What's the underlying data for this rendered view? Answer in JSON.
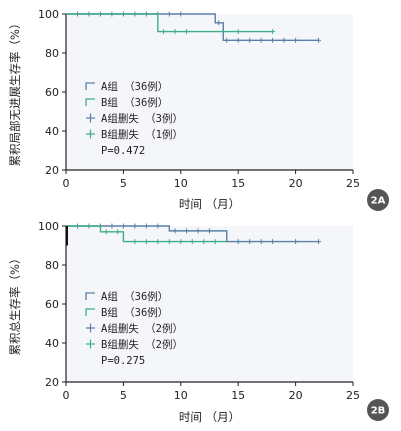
{
  "colors": {
    "groupA": "#5b7fa8",
    "groupB": "#3fae84",
    "plotBg": "#f4f6f9",
    "axis": "#222222",
    "badge": "#555555"
  },
  "chart_data": [
    {
      "id": "2A",
      "type": "line",
      "badge": "2A",
      "ylabel": "累积局部无进展生存率（%）",
      "xlabel": "时间 （月）",
      "xlim": [
        0,
        25
      ],
      "ylim": [
        20,
        100
      ],
      "xticks": [
        "0",
        "5",
        "10",
        "15",
        "20",
        "25"
      ],
      "yticks": [
        "20",
        "40",
        "60",
        "80",
        "100"
      ],
      "legend": [
        {
          "label": "A组 （36例）",
          "marker": "step",
          "series": "A"
        },
        {
          "label": "B组 （36例）",
          "marker": "step",
          "series": "B"
        },
        {
          "label": "A组删失 （3例）",
          "marker": "plus",
          "series": "A"
        },
        {
          "label": "B组删失 （1例）",
          "marker": "plus",
          "series": "B"
        }
      ],
      "pvalue": "P=0.472",
      "series": [
        {
          "name": "A组",
          "key": "A",
          "steps": [
            [
              0,
              100
            ],
            [
              13,
              100
            ],
            [
              13,
              95.5
            ],
            [
              13.7,
              95.5
            ],
            [
              13.7,
              86.5
            ],
            [
              22,
              86.5
            ]
          ],
          "censors": [
            [
              1,
              100
            ],
            [
              2,
              100
            ],
            [
              3,
              100
            ],
            [
              4,
              100
            ],
            [
              5,
              100
            ],
            [
              6,
              100
            ],
            [
              7,
              100
            ],
            [
              8,
              100
            ],
            [
              9,
              100
            ],
            [
              10,
              100
            ],
            [
              13.3,
              95.5
            ],
            [
              14,
              86.5
            ],
            [
              15,
              86.5
            ],
            [
              16,
              86.5
            ],
            [
              17,
              86.5
            ],
            [
              18,
              86.5
            ],
            [
              19,
              86.5
            ],
            [
              20,
              86.5
            ],
            [
              22,
              86.5
            ]
          ]
        },
        {
          "name": "B组",
          "key": "B",
          "steps": [
            [
              0,
              100
            ],
            [
              8,
              100
            ],
            [
              8,
              91
            ],
            [
              18,
              91
            ]
          ],
          "censors": [
            [
              8.5,
              91
            ],
            [
              9.5,
              91
            ],
            [
              10.5,
              91
            ],
            [
              15,
              91
            ],
            [
              18,
              91
            ]
          ]
        }
      ]
    },
    {
      "id": "2B",
      "type": "line",
      "badge": "2B",
      "ylabel": "累积总生存率（%）",
      "xlabel": "时间 （月）",
      "xlim": [
        0,
        25
      ],
      "ylim": [
        20,
        100
      ],
      "xticks": [
        "0",
        "5",
        "10",
        "15",
        "20",
        "25"
      ],
      "yticks": [
        "20",
        "40",
        "60",
        "80",
        "100"
      ],
      "legend": [
        {
          "label": "A组 （36例）",
          "marker": "step",
          "series": "A"
        },
        {
          "label": "B组 （36例）",
          "marker": "step",
          "series": "B"
        },
        {
          "label": "A组删失 （2例）",
          "marker": "plus",
          "series": "A"
        },
        {
          "label": "B组删失 （2例）",
          "marker": "plus",
          "series": "B"
        }
      ],
      "pvalue": "P=0.275",
      "series": [
        {
          "name": "A组",
          "key": "A",
          "steps": [
            [
              0,
              100
            ],
            [
              9,
              100
            ],
            [
              9,
              97.5
            ],
            [
              14,
              97.5
            ],
            [
              14,
              92
            ],
            [
              22,
              92
            ]
          ],
          "censors": [
            [
              1,
              100
            ],
            [
              2,
              100
            ],
            [
              3,
              100
            ],
            [
              4,
              100
            ],
            [
              5,
              100
            ],
            [
              6,
              100
            ],
            [
              7,
              100
            ],
            [
              8,
              100
            ],
            [
              9.5,
              97.5
            ],
            [
              10.5,
              97.5
            ],
            [
              11.5,
              97.5
            ],
            [
              12.5,
              97.5
            ],
            [
              15,
              92
            ],
            [
              16,
              92
            ],
            [
              17,
              92
            ],
            [
              18,
              92
            ],
            [
              20,
              92
            ],
            [
              22,
              92
            ]
          ]
        },
        {
          "name": "B组",
          "key": "B",
          "steps": [
            [
              0,
              100
            ],
            [
              3,
              100
            ],
            [
              3,
              97
            ],
            [
              5,
              97
            ],
            [
              5,
              92
            ],
            [
              14,
              92
            ]
          ],
          "censors": [
            [
              3.5,
              97
            ],
            [
              4.5,
              97
            ],
            [
              6,
              92
            ],
            [
              7,
              92
            ],
            [
              8,
              92
            ],
            [
              9,
              92
            ],
            [
              10,
              92
            ],
            [
              11,
              92
            ],
            [
              12,
              92
            ],
            [
              13,
              92
            ]
          ]
        }
      ]
    }
  ]
}
